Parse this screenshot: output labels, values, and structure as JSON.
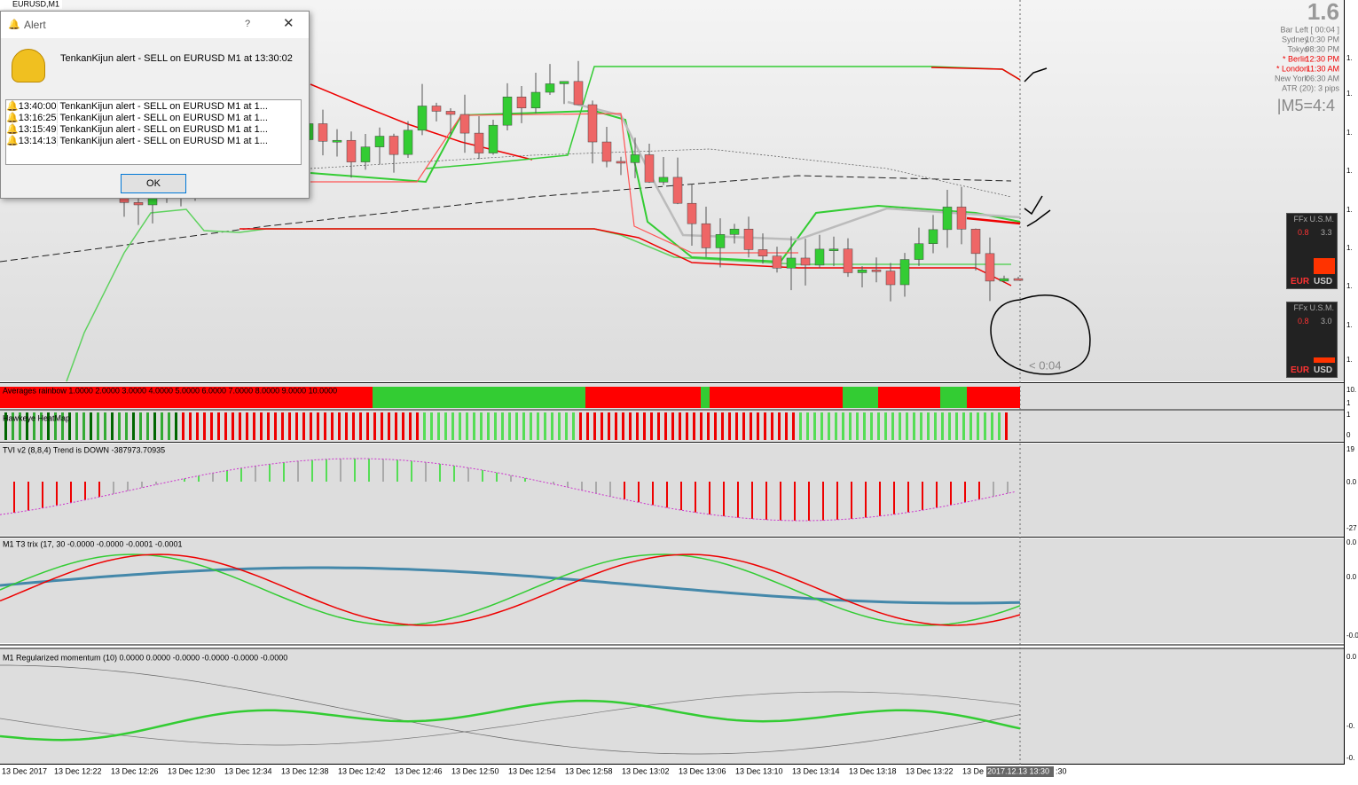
{
  "window_title": "EURUSD,M1",
  "alert": {
    "title": "Alert",
    "help": "?",
    "message": "TenkanKijun alert - SELL on EURUSD M1 at 13:30:02",
    "list": [
      {
        "time": "13:40:00",
        "text": "TenkanKijun alert - SELL on EURUSD M1 at 1..."
      },
      {
        "time": "13:16:25",
        "text": "TenkanKijun alert - SELL on EURUSD M1 at 1..."
      },
      {
        "time": "13:15:49",
        "text": "TenkanKijun alert - SELL on EURUSD M1 at 1..."
      },
      {
        "time": "13:14:13",
        "text": "TenkanKijun alert - SELL on EURUSD M1 at 1..."
      }
    ],
    "ok": "OK"
  },
  "info": {
    "price": "1.6",
    "bar_left": "Bar Left",
    "bar_time": "[ 00:04 ]",
    "sessions": [
      {
        "city": "Sydney",
        "time": "10:30 PM"
      },
      {
        "city": "Tokyo",
        "time": "08:30 PM"
      },
      {
        "city": "* Berlin",
        "time": "12:30 PM"
      },
      {
        "city": "* London",
        "time": "11:30 AM"
      },
      {
        "city": "New York",
        "time": "06:30 AM"
      }
    ],
    "atr": "ATR (20): 3 pips",
    "m5": "|M5=4:4"
  },
  "countdown": "< 0:04",
  "indicators": [
    "Averages rainbow 1.0000 2.0000 3.0000 4.0000 5.0000 6.0000 7.0000 8.0000 9.0000 10.0000",
    "Hawkeye HeatMap",
    "TVI v2 (8,8,4) Trend is DOWN -387973.70935",
    "M1 T3 trix (17, 30 -0.0000 -0.0000 -0.0001 -0.0001",
    "M1 Regularized momentum (10) 0.0000 0.0000 -0.0000 -0.0000 -0.0000 -0.0000"
  ],
  "x_axis": [
    "13 Dec 2017",
    "13 Dec 12:22",
    "13 Dec 12:26",
    "13 Dec 12:30",
    "13 Dec 12:34",
    "13 Dec 12:38",
    "13 Dec 12:42",
    "13 Dec 12:46",
    "13 Dec 12:50",
    "13 Dec 12:54",
    "13 Dec 12:58",
    "13 Dec 13:02",
    "13 Dec 13:06",
    "13 Dec 13:10",
    "13 Dec 13:14",
    "13 Dec 13:18",
    "13 Dec 13:22",
    "13 De"
  ],
  "x_axis_current": "2017.12.13 13:30",
  "x_axis_tail": ":30",
  "right_axis": [
    "1.",
    "1.",
    "1.",
    "1.",
    "1.",
    "1.",
    "1.",
    "1.",
    "1.",
    "10.",
    "1",
    "1",
    "0",
    "19",
    "0.0",
    "-27",
    "0.0",
    "0.0",
    "-0.0",
    "0.0",
    "-0.",
    "-0."
  ],
  "widgets": [
    {
      "title": "FFx U.S.M.",
      "left": "0.8",
      "right": "3.3",
      "base": "EUR",
      "quote": "USD"
    },
    {
      "title": "FFx U.S.M.",
      "left": "0.8",
      "right": "3.0",
      "base": "EUR",
      "quote": "USD"
    }
  ]
}
